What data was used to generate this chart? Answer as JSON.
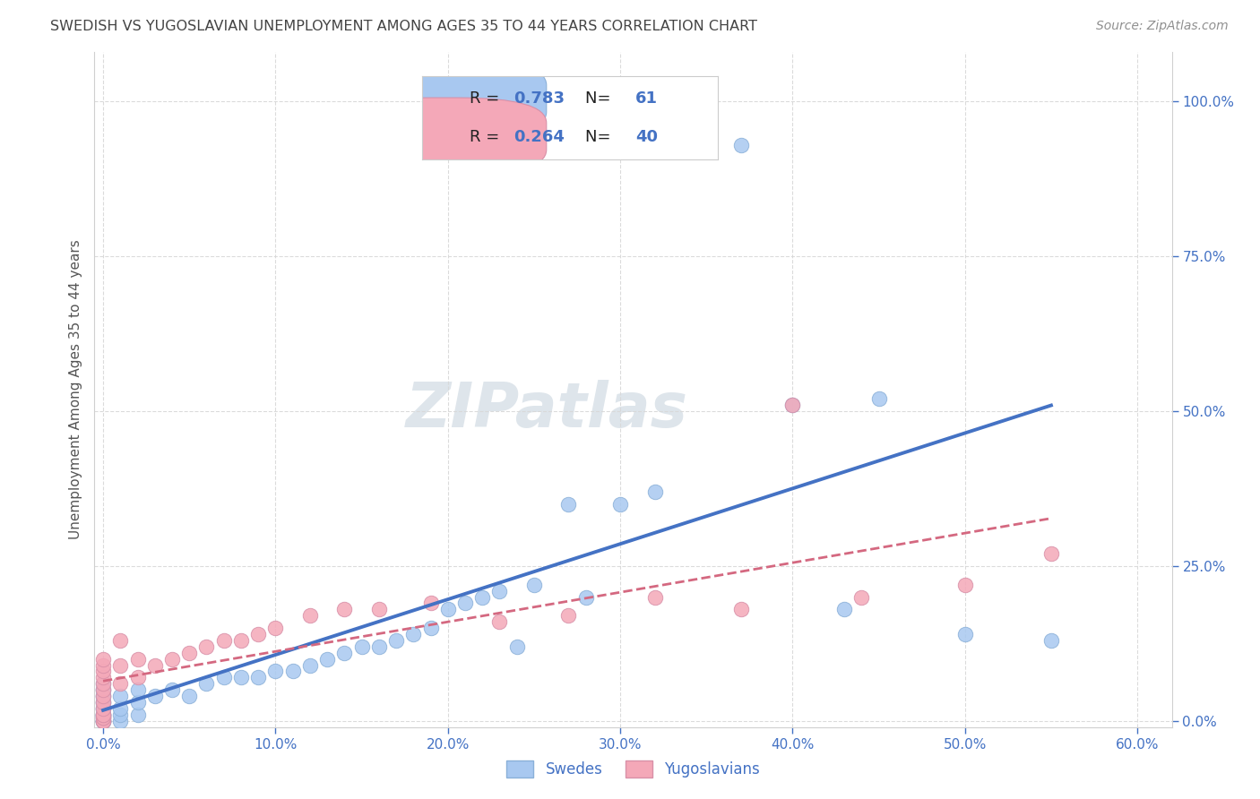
{
  "title": "SWEDISH VS YUGOSLAVIAN UNEMPLOYMENT AMONG AGES 35 TO 44 YEARS CORRELATION CHART",
  "source": "Source: ZipAtlas.com",
  "xlabel_vals": [
    0.0,
    0.1,
    0.2,
    0.3,
    0.4,
    0.5,
    0.6
  ],
  "ylabel_vals": [
    0.0,
    0.25,
    0.5,
    0.75,
    1.0
  ],
  "xlim": [
    -0.005,
    0.62
  ],
  "ylim": [
    -0.01,
    1.08
  ],
  "swedes_R": 0.783,
  "swedes_N": 61,
  "yugos_R": 0.264,
  "yugos_N": 40,
  "swede_dot_color": "#a8c8f0",
  "yugo_dot_color": "#f4a8b8",
  "swede_line_color": "#4472c4",
  "yugo_line_color": "#d46880",
  "grid_color": "#d8d8d8",
  "watermark_color": "#c8d4de",
  "title_color": "#444444",
  "source_color": "#909090",
  "axis_tick_color": "#4472c4",
  "legend_R_color": "#222222",
  "legend_val_color": "#4472c4",
  "legend_patch_swede": "#a8c8f0",
  "legend_patch_yugo": "#f4a8b8",
  "ylabel_label_color": "#555555",
  "swedes_x": [
    0.0,
    0.0,
    0.0,
    0.0,
    0.0,
    0.0,
    0.0,
    0.0,
    0.0,
    0.0,
    0.0,
    0.0,
    0.0,
    0.0,
    0.0,
    0.0,
    0.0,
    0.0,
    0.0,
    0.0,
    0.01,
    0.01,
    0.01,
    0.01,
    0.02,
    0.02,
    0.02,
    0.03,
    0.04,
    0.05,
    0.06,
    0.07,
    0.08,
    0.09,
    0.1,
    0.11,
    0.12,
    0.13,
    0.14,
    0.15,
    0.16,
    0.17,
    0.18,
    0.19,
    0.2,
    0.21,
    0.22,
    0.23,
    0.24,
    0.25,
    0.27,
    0.28,
    0.3,
    0.32,
    0.35,
    0.37,
    0.4,
    0.43,
    0.45,
    0.5,
    0.55
  ],
  "swedes_y": [
    0.0,
    0.0,
    0.0,
    0.0,
    0.0,
    0.005,
    0.005,
    0.01,
    0.01,
    0.01,
    0.01,
    0.02,
    0.02,
    0.03,
    0.03,
    0.04,
    0.04,
    0.05,
    0.05,
    0.06,
    0.0,
    0.01,
    0.02,
    0.04,
    0.01,
    0.03,
    0.05,
    0.04,
    0.05,
    0.04,
    0.06,
    0.07,
    0.07,
    0.07,
    0.08,
    0.08,
    0.09,
    0.1,
    0.11,
    0.12,
    0.12,
    0.13,
    0.14,
    0.15,
    0.18,
    0.19,
    0.2,
    0.21,
    0.12,
    0.22,
    0.35,
    0.2,
    0.35,
    0.37,
    0.93,
    0.93,
    0.51,
    0.18,
    0.52,
    0.14,
    0.13
  ],
  "yugos_x": [
    0.0,
    0.0,
    0.0,
    0.0,
    0.0,
    0.0,
    0.0,
    0.0,
    0.0,
    0.0,
    0.0,
    0.0,
    0.0,
    0.0,
    0.0,
    0.01,
    0.01,
    0.01,
    0.02,
    0.02,
    0.03,
    0.04,
    0.05,
    0.06,
    0.07,
    0.08,
    0.09,
    0.1,
    0.12,
    0.14,
    0.16,
    0.19,
    0.23,
    0.27,
    0.32,
    0.37,
    0.4,
    0.44,
    0.5,
    0.55
  ],
  "yugos_y": [
    0.0,
    0.0,
    0.005,
    0.005,
    0.01,
    0.01,
    0.02,
    0.03,
    0.04,
    0.05,
    0.06,
    0.07,
    0.08,
    0.09,
    0.1,
    0.06,
    0.09,
    0.13,
    0.07,
    0.1,
    0.09,
    0.1,
    0.11,
    0.12,
    0.13,
    0.13,
    0.14,
    0.15,
    0.17,
    0.18,
    0.18,
    0.19,
    0.16,
    0.17,
    0.2,
    0.18,
    0.51,
    0.2,
    0.22,
    0.27
  ],
  "legend_labels": [
    "Swedes",
    "Yugoslavians"
  ]
}
